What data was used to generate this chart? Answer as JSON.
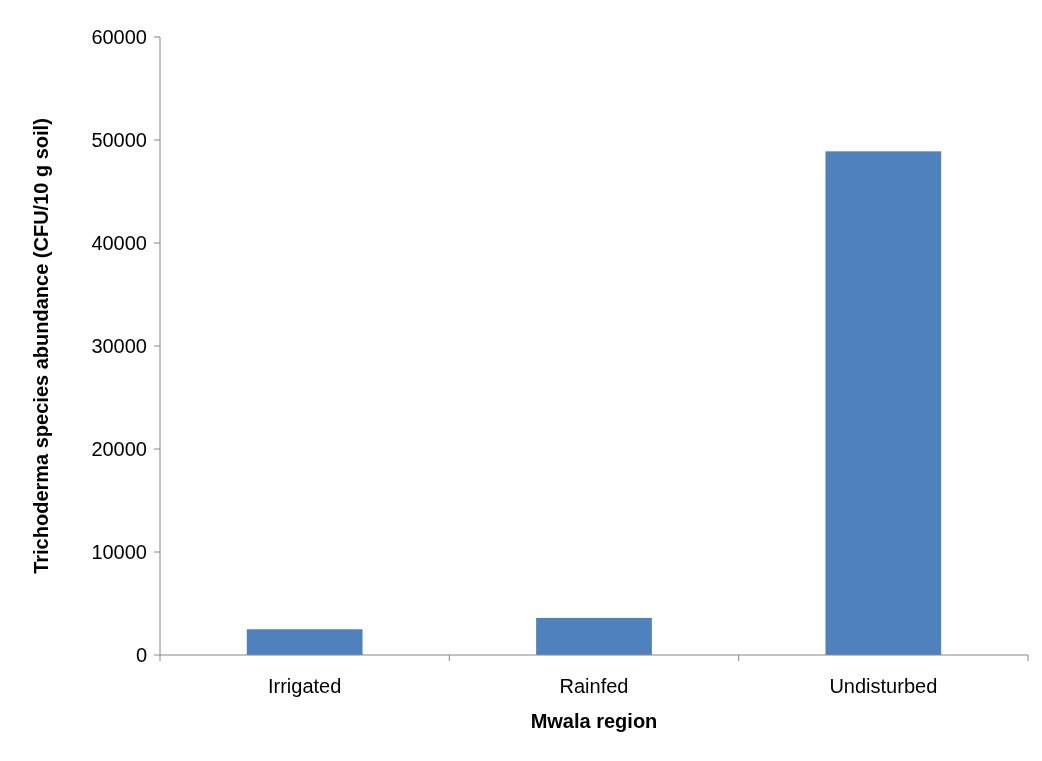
{
  "chart_data": {
    "type": "bar",
    "xlabel": "Mwala region",
    "ylabel": "Trichoderma species abundance (CFU/10 g soil)",
    "categories": [
      "Irrigated",
      "Rainfed",
      "Undisturbed"
    ],
    "values": [
      2500,
      3600,
      48900
    ],
    "color": "#4f81bd",
    "ylim": [
      0,
      60000
    ],
    "yticks": [
      0,
      10000,
      20000,
      30000,
      40000,
      50000,
      60000
    ],
    "grid": false
  }
}
